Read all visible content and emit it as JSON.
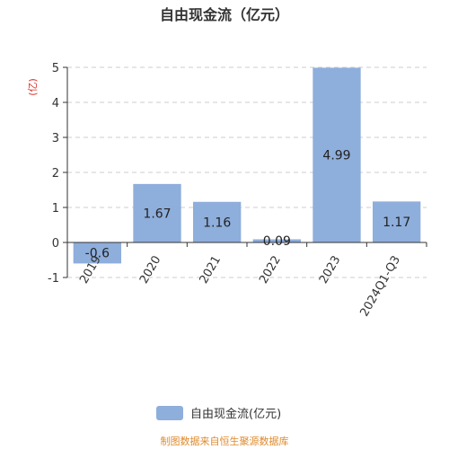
{
  "chart_data": {
    "type": "bar",
    "title": "自由现金流（亿元）",
    "y_unit_label": "(亿)",
    "categories": [
      "2019",
      "2020",
      "2021",
      "2022",
      "2023",
      "2024Q1-Q3"
    ],
    "series": [
      {
        "name": "自由现金流(亿元)",
        "values": [
          -0.6,
          1.67,
          1.16,
          0.09,
          4.99,
          1.17
        ],
        "data_labels": [
          "-0.6",
          "1.67",
          "1.16",
          "0.09",
          "4.99",
          "1.17"
        ],
        "color": "#8eaedc"
      }
    ],
    "ylim": [
      -1,
      5
    ],
    "yticks": [
      -1,
      0,
      1,
      2,
      3,
      4,
      5
    ],
    "grid": true,
    "legend_position": "bottom"
  },
  "footer": "制图数据来自恒生聚源数据库"
}
